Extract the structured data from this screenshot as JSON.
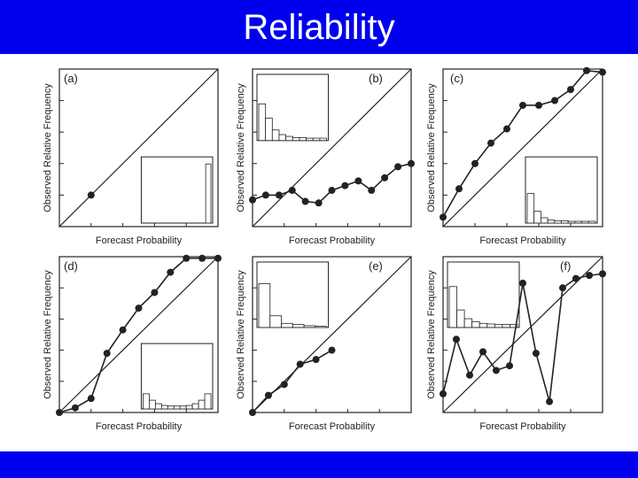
{
  "title": "Reliability",
  "colors": {
    "bar": "#0000ee",
    "background": "#ffffff",
    "ink": "#222222"
  },
  "chart_data": [
    {
      "type": "line",
      "panel_label": "(a)",
      "xlabel": "Forecast Probability",
      "ylabel": "Observed Relative Frequency",
      "xlim": [
        0,
        1
      ],
      "ylim": [
        0,
        1
      ],
      "diagonal": true,
      "x": [
        0.2
      ],
      "y": [
        0.2
      ],
      "inset_histogram": {
        "position": "bottom-right",
        "values": [
          0,
          0,
          0,
          0,
          0,
          0,
          0,
          0,
          0,
          0,
          0,
          0,
          1.0
        ]
      }
    },
    {
      "type": "line",
      "panel_label": "(b)",
      "xlabel": "Forecast Probability",
      "ylabel": "Observed Relative Frequency",
      "xlim": [
        0,
        1
      ],
      "ylim": [
        0,
        1
      ],
      "diagonal": true,
      "x": [
        0,
        0.083,
        0.167,
        0.25,
        0.333,
        0.417,
        0.5,
        0.583,
        0.667,
        0.75,
        0.833,
        0.917,
        1.0
      ],
      "y": [
        0.17,
        0.2,
        0.2,
        0.23,
        0.16,
        0.15,
        0.23,
        0.26,
        0.29,
        0.23,
        0.31,
        0.38,
        0.4
      ],
      "inset_histogram": {
        "position": "top-left",
        "values": [
          0.62,
          0.38,
          0.18,
          0.1,
          0.07,
          0.05,
          0.05,
          0.04,
          0.04,
          0.04
        ]
      }
    },
    {
      "type": "line",
      "panel_label": "(c)",
      "xlabel": "Forecast Probability",
      "ylabel": "Observed Relative Frequency",
      "xlim": [
        0,
        1
      ],
      "ylim": [
        0,
        1
      ],
      "diagonal": true,
      "x": [
        0,
        0.1,
        0.2,
        0.3,
        0.4,
        0.5,
        0.6,
        0.7,
        0.8,
        0.9,
        1.0
      ],
      "y": [
        0.06,
        0.24,
        0.4,
        0.53,
        0.62,
        0.77,
        0.77,
        0.8,
        0.87,
        0.99,
        0.98
      ],
      "inset_histogram": {
        "position": "bottom-right",
        "values": [
          0.5,
          0.2,
          0.09,
          0.05,
          0.04,
          0.04,
          0.03,
          0.03,
          0.03,
          0.03
        ]
      }
    },
    {
      "type": "line",
      "panel_label": "(d)",
      "xlabel": "Forecast Probability",
      "ylabel": "Observed Relative Frequency",
      "xlim": [
        0,
        1
      ],
      "ylim": [
        0,
        1
      ],
      "diagonal": true,
      "x": [
        0,
        0.1,
        0.2,
        0.3,
        0.4,
        0.5,
        0.6,
        0.7,
        0.8,
        0.9,
        1.0
      ],
      "y": [
        0.0,
        0.03,
        0.09,
        0.38,
        0.53,
        0.67,
        0.77,
        0.9,
        0.99,
        0.99,
        0.99
      ],
      "inset_histogram": {
        "position": "bottom-right",
        "values": [
          0.26,
          0.15,
          0.09,
          0.06,
          0.05,
          0.05,
          0.05,
          0.06,
          0.09,
          0.15,
          0.26
        ]
      }
    },
    {
      "type": "line",
      "panel_label": "(e)",
      "xlabel": "Forecast Probability",
      "ylabel": "Observed Relative Frequency",
      "xlim": [
        0,
        1
      ],
      "ylim": [
        0,
        1
      ],
      "diagonal": true,
      "x": [
        0,
        0.1,
        0.2,
        0.3,
        0.4,
        0.5
      ],
      "y": [
        0.0,
        0.11,
        0.18,
        0.31,
        0.34,
        0.4
      ],
      "inset_histogram": {
        "position": "top-left",
        "values": [
          0.75,
          0.2,
          0.07,
          0.05,
          0.03,
          0.02
        ]
      }
    },
    {
      "type": "line",
      "panel_label": "(f)",
      "xlabel": "Forecast Probability",
      "ylabel": "Observed Relative Frequency",
      "xlim": [
        0,
        1
      ],
      "ylim": [
        0,
        1
      ],
      "diagonal": true,
      "x": [
        0,
        0.083,
        0.167,
        0.25,
        0.333,
        0.417,
        0.5,
        0.583,
        0.667,
        0.75,
        0.833,
        0.917,
        1.0
      ],
      "y": [
        0.12,
        0.47,
        0.24,
        0.39,
        0.27,
        0.3,
        0.83,
        0.38,
        0.07,
        0.8,
        0.86,
        0.88,
        0.89
      ],
      "inset_histogram": {
        "position": "top-left",
        "values": [
          0.7,
          0.3,
          0.15,
          0.1,
          0.07,
          0.06,
          0.05,
          0.05,
          0.05
        ]
      }
    }
  ]
}
